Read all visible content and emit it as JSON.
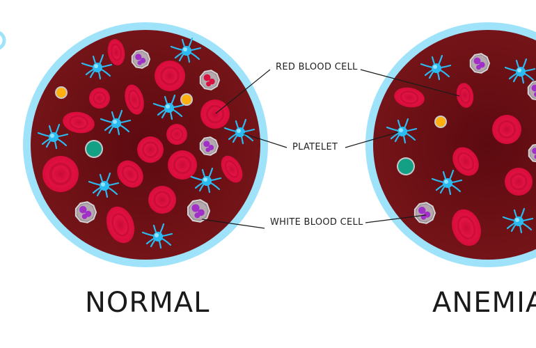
{
  "labels": {
    "red_blood_cell": "RED BLOOD CELL",
    "platelet": "PLATELET",
    "white_blood_cell": "WHITE BLOOD CELL"
  },
  "panels": {
    "left_title": "NORMAL",
    "right_title": "ANEMIA"
  },
  "colors": {
    "ring": "#9fe3fb",
    "plasma": "#6e1216",
    "red_blood_cell": "#e0103f",
    "platelet": "#2bbbf0",
    "white_blood_cell_nucleus": "#a030c8"
  }
}
